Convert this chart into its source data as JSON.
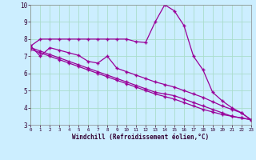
{
  "background_color": "#cceeff",
  "grid_color": "#aaddcc",
  "line_color": "#990099",
  "xlabel": "Windchill (Refroidissement éolien,°C)",
  "xlim": [
    0,
    23
  ],
  "ylim": [
    3,
    10
  ],
  "yticks": [
    3,
    4,
    5,
    6,
    7,
    8,
    9,
    10
  ],
  "xticks": [
    0,
    1,
    2,
    3,
    4,
    5,
    6,
    7,
    8,
    9,
    10,
    11,
    12,
    13,
    14,
    15,
    16,
    17,
    18,
    19,
    20,
    21,
    22,
    23
  ],
  "series1": {
    "x": [
      0,
      1,
      2,
      3,
      4,
      5,
      6,
      7,
      8,
      9,
      10,
      11,
      12,
      13,
      14,
      15,
      16,
      17,
      18,
      19,
      20,
      21,
      22,
      23
    ],
    "y": [
      7.6,
      8.0,
      8.0,
      8.0,
      8.0,
      8.0,
      8.0,
      8.0,
      8.0,
      8.0,
      8.0,
      7.85,
      7.8,
      9.0,
      10.0,
      9.65,
      8.8,
      7.0,
      6.2,
      4.9,
      4.4,
      4.0,
      3.7,
      3.3
    ]
  },
  "series2": {
    "x": [
      0,
      1,
      2,
      3,
      4,
      5,
      6,
      7,
      8,
      9,
      10,
      11,
      12,
      13,
      14,
      15,
      16,
      17,
      18,
      19,
      20,
      21,
      22,
      23
    ],
    "y": [
      7.6,
      7.0,
      7.5,
      7.35,
      7.2,
      7.05,
      6.7,
      6.6,
      7.0,
      6.3,
      6.1,
      5.9,
      5.7,
      5.5,
      5.35,
      5.2,
      5.0,
      4.8,
      4.6,
      4.35,
      4.1,
      3.9,
      3.7,
      3.3
    ]
  },
  "series3": {
    "x": [
      0,
      1,
      2,
      3,
      4,
      5,
      6,
      7,
      8,
      9,
      10,
      11,
      12,
      13,
      14,
      15,
      16,
      17,
      18,
      19,
      20,
      21,
      22,
      23
    ],
    "y": [
      7.5,
      7.3,
      7.1,
      6.9,
      6.7,
      6.5,
      6.3,
      6.1,
      5.9,
      5.7,
      5.5,
      5.3,
      5.1,
      4.9,
      4.8,
      4.7,
      4.5,
      4.3,
      4.1,
      3.9,
      3.7,
      3.5,
      3.4,
      3.3
    ]
  },
  "series4": {
    "x": [
      0,
      1,
      2,
      3,
      4,
      5,
      6,
      7,
      8,
      9,
      10,
      11,
      12,
      13,
      14,
      15,
      16,
      17,
      18,
      19,
      20,
      21,
      22,
      23
    ],
    "y": [
      7.4,
      7.2,
      7.0,
      6.8,
      6.6,
      6.4,
      6.2,
      6.0,
      5.8,
      5.6,
      5.4,
      5.2,
      5.0,
      4.8,
      4.65,
      4.5,
      4.3,
      4.1,
      3.9,
      3.75,
      3.6,
      3.5,
      3.4,
      3.3
    ]
  }
}
